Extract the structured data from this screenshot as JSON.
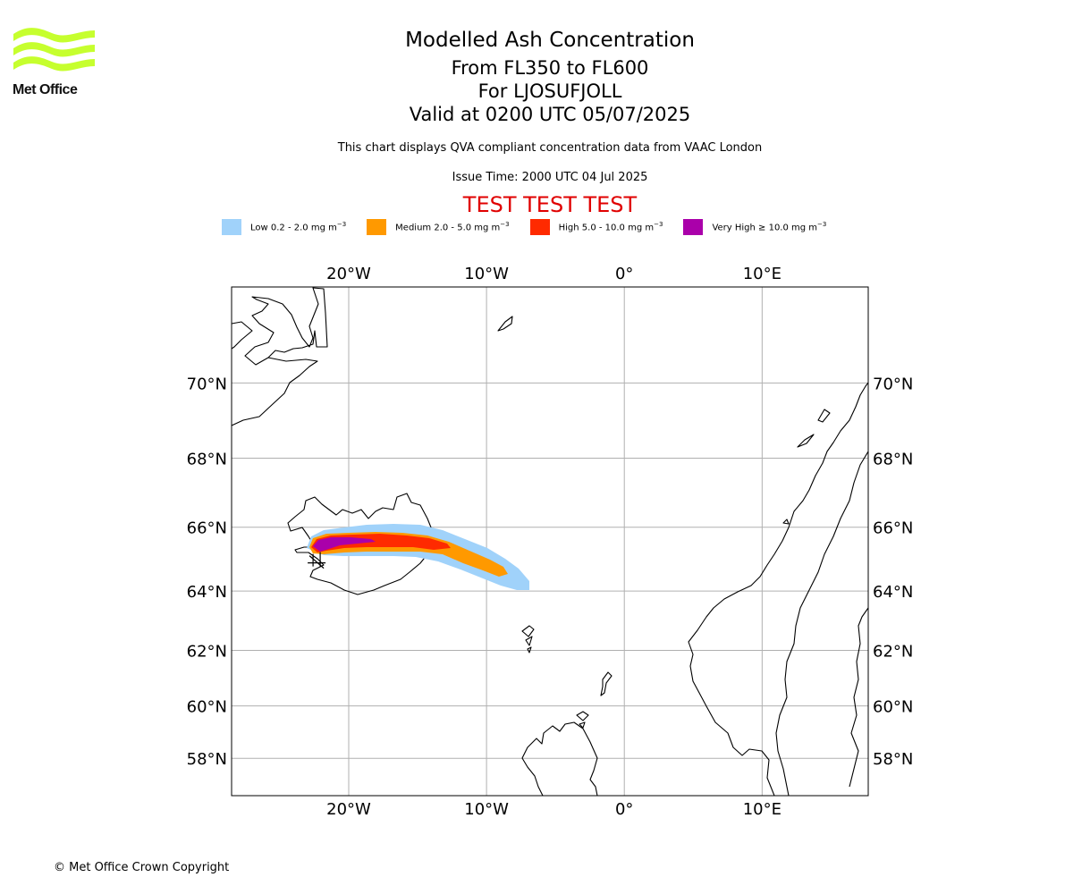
{
  "brand": {
    "name": "Met Office",
    "logo_color": "#c6ff2e"
  },
  "title": {
    "line1": "Modelled Ash Concentration",
    "line2": "From FL350 to FL600",
    "line3": "For LJOSUFJOLL",
    "line4": "Valid at 0200 UTC 05/07/2025"
  },
  "subtitle": "This chart displays QVA compliant concentration data from VAAC London",
  "issue_time": "Issue Time: 2000 UTC 04 Jul 2025",
  "test_banner": "TEST TEST TEST",
  "legend": [
    {
      "label": "Low 0.2 - 2.0 mg m",
      "sup": "−3",
      "color": "#a0d2fa"
    },
    {
      "label": "Medium 2.0 - 5.0 mg m",
      "sup": "−3",
      "color": "#ff9900"
    },
    {
      "label": "High 5.0 - 10.0 mg m",
      "sup": "−3",
      "color": "#ff2a00"
    },
    {
      "label": "Very High  ≥  10.0 mg m",
      "sup": "−3",
      "color": "#aa00aa"
    }
  ],
  "map": {
    "projection": "mercator",
    "lon_range": [
      -28.5,
      17.7
    ],
    "lat_range": [
      56.5,
      72.3
    ],
    "gridlines": true,
    "lon_ticks": [
      {
        "value": -20,
        "label": "20°W"
      },
      {
        "value": -10,
        "label": "10°W"
      },
      {
        "value": 0,
        "label": "0°"
      },
      {
        "value": 10,
        "label": "10°E"
      }
    ],
    "lat_ticks": [
      {
        "value": 70,
        "label": "70°N"
      },
      {
        "value": 68,
        "label": "68°N"
      },
      {
        "value": 66,
        "label": "66°N"
      },
      {
        "value": 64,
        "label": "64°N"
      },
      {
        "value": 62,
        "label": "62°N"
      },
      {
        "value": 60,
        "label": "60°N"
      },
      {
        "value": 58,
        "label": "58°N"
      }
    ],
    "source_marker": {
      "lon": -22.2,
      "lat": 64.9
    }
  },
  "copyright": "© Met Office Crown Copyright"
}
